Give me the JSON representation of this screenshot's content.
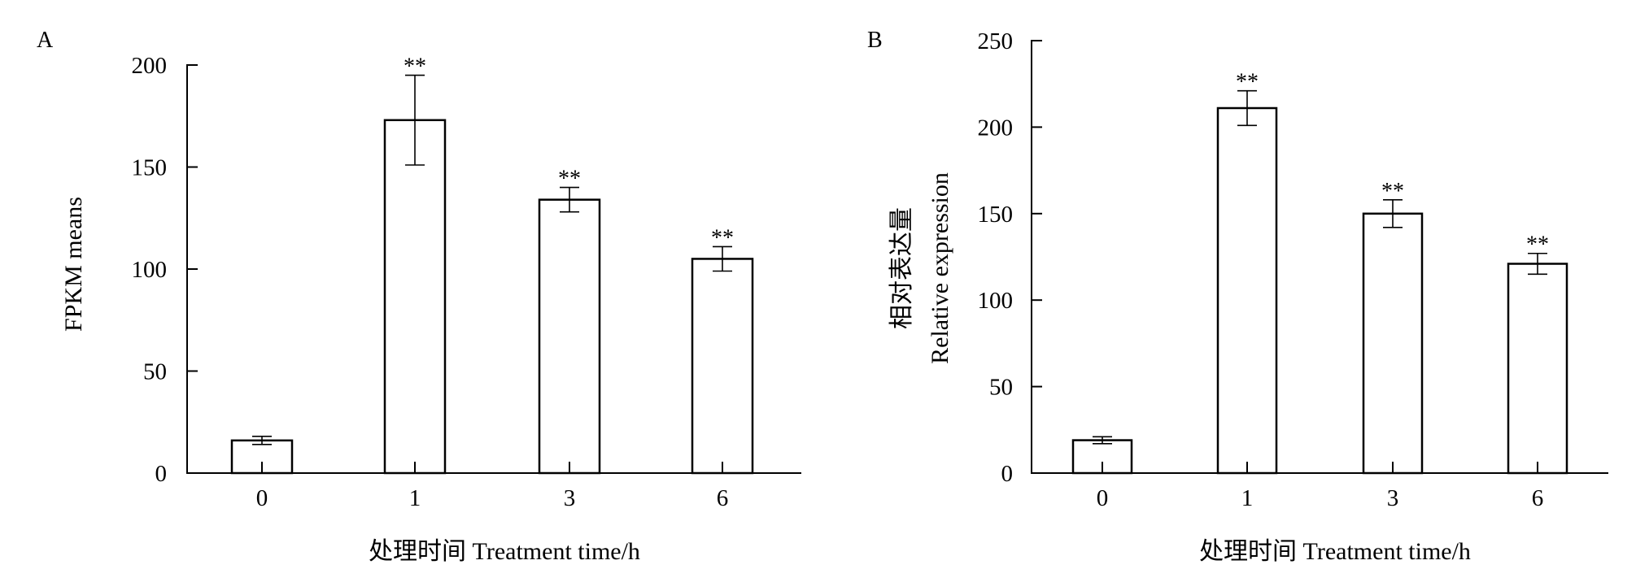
{
  "chart_data": [
    {
      "panel_label": "A",
      "type": "bar",
      "categories": [
        "0",
        "1",
        "3",
        "6"
      ],
      "values": [
        16,
        173,
        134,
        105
      ],
      "errors": [
        2,
        22,
        6,
        6
      ],
      "annotations": [
        "",
        "**",
        "**",
        "**"
      ],
      "ylabel_lines": [
        "FPKM means"
      ],
      "xlabel": "处理时间 Treatment time/h",
      "ylim": [
        0,
        200
      ],
      "yticks": [
        0,
        50,
        100,
        150,
        200
      ],
      "grid": false,
      "colors": {
        "bar_fill": "#ffffff",
        "stroke": "#000000"
      }
    },
    {
      "panel_label": "B",
      "type": "bar",
      "categories": [
        "0",
        "1",
        "3",
        "6"
      ],
      "values": [
        19,
        211,
        150,
        121
      ],
      "errors": [
        2,
        10,
        8,
        6
      ],
      "annotations": [
        "",
        "**",
        "**",
        "**"
      ],
      "ylabel_lines": [
        "相对表达量",
        "Relative expression"
      ],
      "xlabel": "处理时间 Treatment time/h",
      "ylim": [
        0,
        250
      ],
      "yticks": [
        0,
        50,
        100,
        150,
        200,
        250
      ],
      "grid": false,
      "colors": {
        "bar_fill": "#ffffff",
        "stroke": "#000000"
      }
    }
  ]
}
